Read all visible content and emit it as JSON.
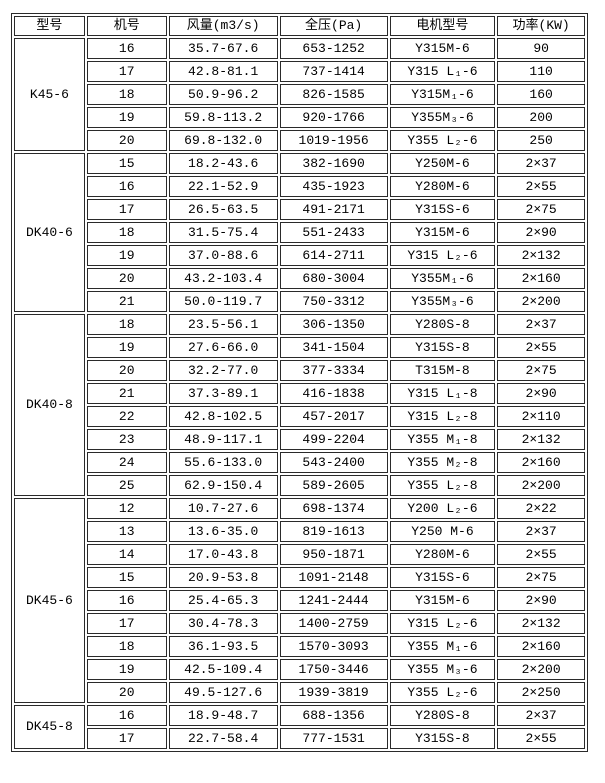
{
  "table": {
    "headers": [
      "型号",
      "机号",
      "风量(m3/s)",
      "全压(Pa)",
      "电机型号",
      "功率(KW)"
    ],
    "column_keys": [
      "model",
      "machine_no",
      "air_volume",
      "total_pressure",
      "motor_model",
      "power"
    ],
    "groups": [
      {
        "model": "K45-6",
        "rows": [
          [
            "16",
            "35.7-67.6",
            "653-1252",
            "Y315M-6",
            "90"
          ],
          [
            "17",
            "42.8-81.1",
            "737-1414",
            "Y315 L₁-6",
            "110"
          ],
          [
            "18",
            "50.9-96.2",
            "826-1585",
            "Y315M₁-6",
            "160"
          ],
          [
            "19",
            "59.8-113.2",
            "920-1766",
            "Y355M₃-6",
            "200"
          ],
          [
            "20",
            "69.8-132.0",
            "1019-1956",
            "Y355 L₂-6",
            "250"
          ]
        ]
      },
      {
        "model": "DK40-6",
        "rows": [
          [
            "15",
            "18.2-43.6",
            "382-1690",
            "Y250M-6",
            "2×37"
          ],
          [
            "16",
            "22.1-52.9",
            "435-1923",
            "Y280M-6",
            "2×55"
          ],
          [
            "17",
            "26.5-63.5",
            "491-2171",
            "Y315S-6",
            "2×75"
          ],
          [
            "18",
            "31.5-75.4",
            "551-2433",
            "Y315M-6",
            "2×90"
          ],
          [
            "19",
            "37.0-88.6",
            "614-2711",
            "Y315 L₂-6",
            "2×132"
          ],
          [
            "20",
            "43.2-103.4",
            "680-3004",
            "Y355M₁-6",
            "2×160"
          ],
          [
            "21",
            "50.0-119.7",
            "750-3312",
            "Y355M₃-6",
            "2×200"
          ]
        ]
      },
      {
        "model": "DK40-8",
        "rows": [
          [
            "18",
            "23.5-56.1",
            "306-1350",
            "Y280S-8",
            "2×37"
          ],
          [
            "19",
            "27.6-66.0",
            "341-1504",
            "Y315S-8",
            "2×55"
          ],
          [
            "20",
            "32.2-77.0",
            "377-3334",
            "T315M-8",
            "2×75"
          ],
          [
            "21",
            "37.3-89.1",
            "416-1838",
            "Y315 L₁-8",
            "2×90"
          ],
          [
            "22",
            "42.8-102.5",
            "457-2017",
            "Y315 L₂-8",
            "2×110"
          ],
          [
            "23",
            "48.9-117.1",
            "499-2204",
            "Y355 M₁-8",
            "2×132"
          ],
          [
            "24",
            "55.6-133.0",
            "543-2400",
            "Y355 M₂-8",
            "2×160"
          ],
          [
            "25",
            "62.9-150.4",
            "589-2605",
            "Y355 L₂-8",
            "2×200"
          ]
        ]
      },
      {
        "model": "DK45-6",
        "rows": [
          [
            "12",
            "10.7-27.6",
            "698-1374",
            "Y200 L₂-6",
            "2×22"
          ],
          [
            "13",
            "13.6-35.0",
            "819-1613",
            "Y250 M-6",
            "2×37"
          ],
          [
            "14",
            "17.0-43.8",
            "950-1871",
            "Y280M-6",
            "2×55"
          ],
          [
            "15",
            "20.9-53.8",
            "1091-2148",
            "Y315S-6",
            "2×75"
          ],
          [
            "16",
            "25.4-65.3",
            "1241-2444",
            "Y315M-6",
            "2×90"
          ],
          [
            "17",
            "30.4-78.3",
            "1400-2759",
            "Y315 L₂-6",
            "2×132"
          ],
          [
            "18",
            "36.1-93.5",
            "1570-3093",
            "Y355 M₁-6",
            "2×160"
          ],
          [
            "19",
            "42.5-109.4",
            "1750-3446",
            "Y355 M₃-6",
            "2×200"
          ],
          [
            "20",
            "49.5-127.6",
            "1939-3819",
            "Y355 L₂-6",
            "2×250"
          ]
        ]
      },
      {
        "model": "DK45-8",
        "rows": [
          [
            "16",
            "18.9-48.7",
            "688-1356",
            "Y280S-8",
            "2×37"
          ],
          [
            "17",
            "22.7-58.4",
            "777-1531",
            "Y315S-8",
            "2×55"
          ]
        ]
      }
    ]
  },
  "colors": {
    "border": "#2a2a2a",
    "text": "#000000",
    "background": "#ffffff"
  }
}
